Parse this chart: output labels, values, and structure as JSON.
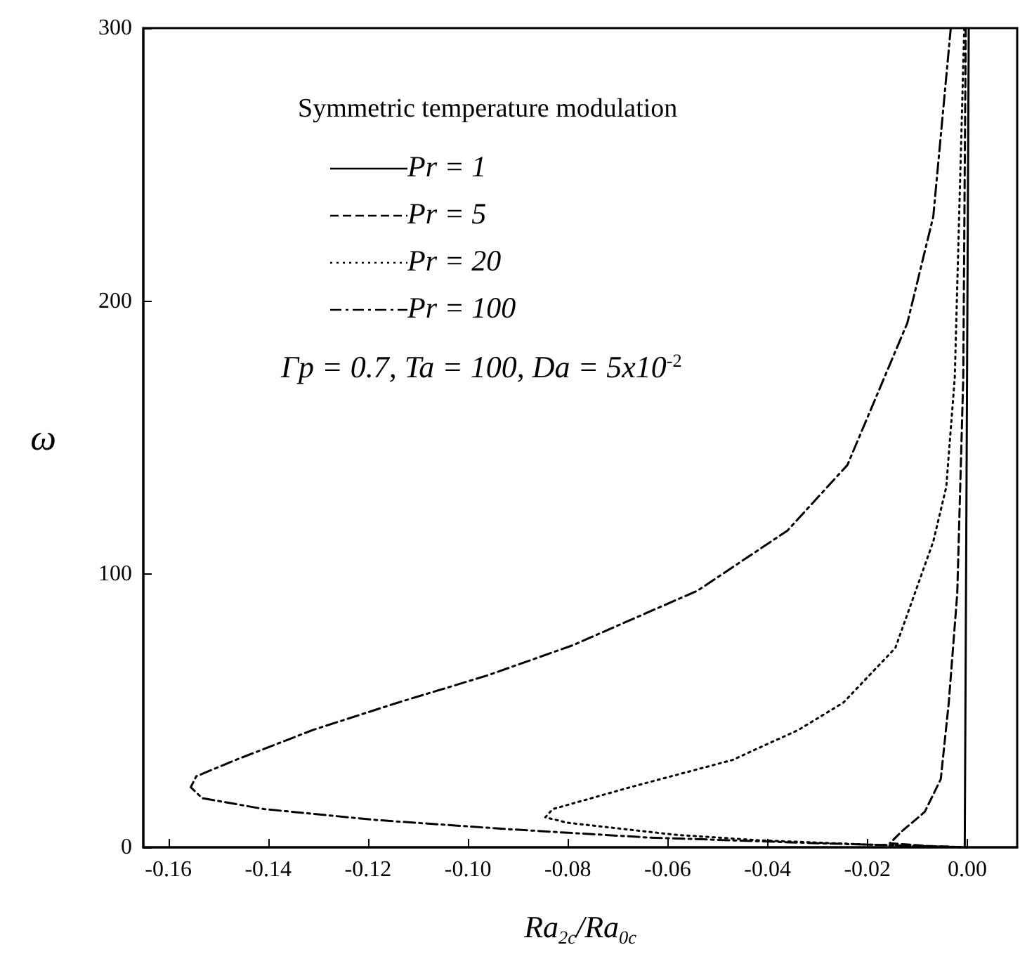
{
  "chart_data": {
    "type": "line",
    "legend_title": "Symmetric temperature modulation",
    "xlabel": "Ra$_{2c}$/Ra$_{0c}$",
    "ylabel": "ω",
    "annotations": [
      "Γp = 0.7, Ta = 100, Da = 5x10$^{-2}$"
    ],
    "xlim": [
      -0.165,
      0.01
    ],
    "xticks": [
      -0.16,
      -0.14,
      -0.12,
      {
        "value": -0.1,
        "label": "-0.10"
      },
      -0.08,
      -0.06,
      -0.04,
      -0.02,
      {
        "value": 0,
        "label": "0.00"
      }
    ],
    "ylim": [
      0,
      300
    ],
    "yticks": [
      0,
      100,
      200,
      300
    ],
    "grid": false,
    "legend": "top",
    "series": [
      {
        "name": "Pr = 1",
        "color": "#000000",
        "line_style": "solid",
        "x": [
          -0.0005,
          0.0003
        ],
        "values": [
          0,
          300
        ]
      },
      {
        "name": "Pr = 5",
        "color": "#000000",
        "line_style": "dashed",
        "x": [
          -0.0003,
          -0.0008,
          -0.002,
          -0.0037,
          -0.0053,
          -0.0085,
          -0.0132,
          -0.0155,
          -0.008,
          0
        ],
        "values": [
          300,
          172,
          93,
          53,
          25,
          13,
          5.7,
          1.5,
          0.5,
          0
        ]
      },
      {
        "name": "Pr = 20",
        "color": "#000000",
        "line_style": "dotted",
        "x": [
          -0.0006,
          -0.0025,
          -0.0042,
          -0.0068,
          -0.0144,
          -0.0248,
          -0.0338,
          -0.047,
          -0.0675,
          -0.083,
          -0.0845,
          -0.08,
          -0.0585,
          -0.042,
          -0.02,
          0
        ],
        "values": [
          300,
          172,
          132,
          112,
          73,
          53,
          43,
          32,
          22,
          14,
          11,
          9,
          4.6,
          2.6,
          1,
          0
        ]
      },
      {
        "name": "Pr = 100",
        "color": "#000000",
        "line_style": "dashdot",
        "x": [
          -0.0033,
          -0.0068,
          -0.012,
          -0.024,
          -0.036,
          -0.054,
          -0.079,
          -0.096,
          -0.114,
          -0.131,
          -0.1465,
          -0.1544,
          -0.1555,
          -0.1532,
          -0.1408,
          -0.1183,
          -0.0924,
          -0.064,
          -0.03,
          0
        ],
        "values": [
          300,
          231,
          192,
          140,
          116,
          94,
          74,
          63,
          53,
          43,
          32,
          26,
          22,
          18,
          14,
          10,
          6.7,
          3.6,
          1.5,
          0
        ]
      }
    ]
  }
}
